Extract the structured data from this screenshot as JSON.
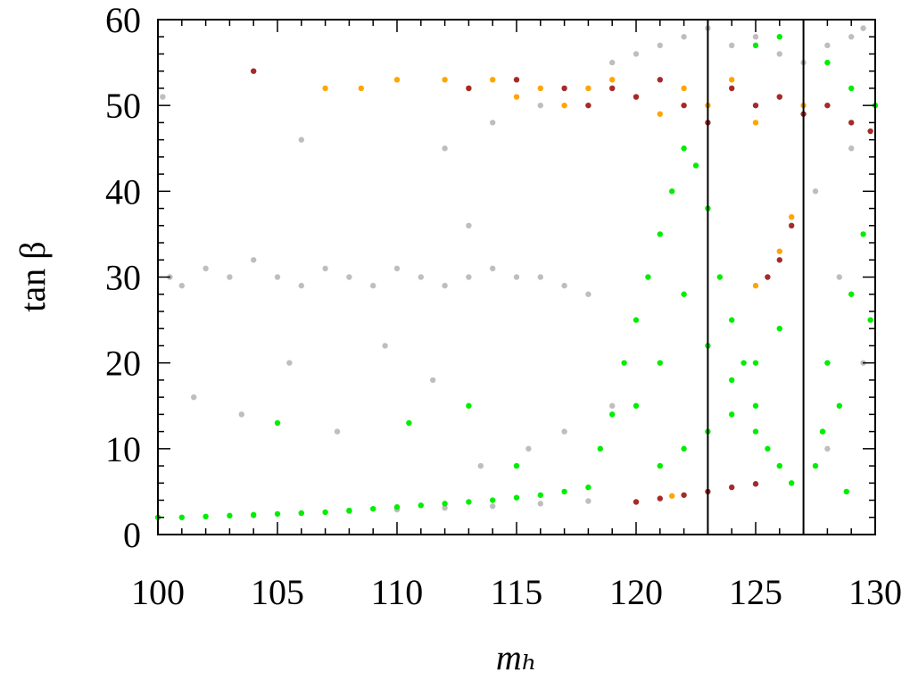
{
  "chart_data": {
    "type": "scatter",
    "xlabel": "mₕ",
    "ylabel": "tan β",
    "xlim": [
      100,
      130
    ],
    "ylim": [
      0,
      60
    ],
    "xticks": [
      100,
      105,
      110,
      115,
      120,
      125,
      130
    ],
    "yticks": [
      0,
      10,
      20,
      30,
      40,
      50,
      60
    ],
    "xminorticks": [
      101,
      102,
      103,
      104,
      106,
      107,
      108,
      109,
      111,
      112,
      113,
      114,
      116,
      117,
      118,
      119,
      121,
      122,
      123,
      124,
      126,
      127,
      128,
      129
    ],
    "yminorticks": [
      2,
      4,
      6,
      8,
      12,
      14,
      16,
      18,
      22,
      24,
      26,
      28,
      32,
      34,
      36,
      38,
      42,
      44,
      46,
      48,
      52,
      54,
      56,
      58
    ],
    "vlines": [
      123,
      127
    ],
    "series": [
      {
        "color": "#bebebe",
        "x": [
          100.5,
          101,
          102,
          103,
          104,
          105,
          106,
          107,
          108,
          109,
          110,
          111,
          112,
          113,
          114,
          115,
          116,
          117,
          118,
          101.5,
          103.5,
          105.5,
          107.5,
          109.5,
          111.5,
          113.5,
          115.5,
          117,
          119,
          104,
          106,
          108,
          110,
          112,
          114,
          116,
          118,
          112,
          114,
          116,
          118,
          119,
          120,
          121,
          122,
          123,
          124,
          125,
          126,
          127,
          128,
          129,
          129.5,
          127.5,
          128.5,
          129.5,
          128,
          129,
          100.2,
          106,
          113
        ],
        "values": [
          30,
          29,
          31,
          30,
          32,
          30,
          29,
          31,
          30,
          29,
          31,
          30,
          29,
          30,
          31,
          30,
          30,
          29,
          28,
          16,
          14,
          20,
          12,
          22,
          18,
          8,
          10,
          12,
          15,
          2.2,
          2.5,
          2.7,
          2.9,
          3.1,
          3.3,
          3.6,
          3.9,
          45,
          48,
          50,
          52,
          55,
          56,
          57,
          58,
          59,
          57,
          58,
          56,
          55,
          57,
          58,
          59,
          40,
          30,
          20,
          10,
          45,
          51,
          46,
          36
        ]
      },
      {
        "color": "#00ee00",
        "x": [
          100,
          101,
          102,
          103,
          104,
          105,
          106,
          107,
          108,
          109,
          110,
          111,
          112,
          113,
          114,
          115,
          116,
          117,
          118,
          118.5,
          119,
          119.5,
          120,
          120.5,
          121,
          121.5,
          122,
          122.5,
          123,
          123.5,
          124,
          124.5,
          125,
          125.5,
          126,
          126.5,
          120,
          121,
          122,
          123,
          124,
          125,
          121,
          122,
          123,
          124,
          125,
          126,
          127.5,
          128,
          128.5,
          129,
          129.5,
          127.8,
          128.8,
          129.8,
          128,
          129,
          130,
          125,
          126,
          105,
          110.5,
          113,
          115
        ],
        "values": [
          2,
          2,
          2.1,
          2.2,
          2.3,
          2.4,
          2.5,
          2.6,
          2.8,
          3,
          3.2,
          3.4,
          3.6,
          3.8,
          4,
          4.3,
          4.6,
          5,
          5.5,
          10,
          14,
          20,
          25,
          30,
          35,
          40,
          45,
          43,
          38,
          30,
          25,
          20,
          15,
          10,
          8,
          6,
          15,
          20,
          28,
          22,
          18,
          12,
          8,
          10,
          12,
          14,
          20,
          24,
          8,
          20,
          15,
          28,
          35,
          12,
          5,
          25,
          55,
          52,
          50,
          57,
          58,
          13,
          13,
          15,
          8
        ]
      },
      {
        "color": "#ffa500",
        "x": [
          107,
          108.5,
          110,
          112,
          113,
          114,
          115,
          116,
          117,
          118,
          119,
          120,
          121,
          122,
          123,
          124,
          125,
          126,
          127,
          125,
          126,
          126.5,
          120,
          121.5
        ],
        "values": [
          52,
          52,
          53,
          53,
          52,
          53,
          51,
          52,
          50,
          52,
          53,
          51,
          49,
          52,
          50,
          53,
          48,
          51,
          50,
          29,
          33,
          37,
          3.8,
          4.5
        ]
      },
      {
        "color": "#a52a2a",
        "x": [
          104,
          113,
          115,
          117,
          118,
          119,
          120,
          121,
          122,
          123,
          124,
          125,
          126,
          127,
          128,
          129,
          129.8,
          126,
          126.5,
          125.5,
          120,
          121,
          122,
          123,
          124,
          125
        ],
        "values": [
          54,
          52,
          53,
          52,
          50,
          52,
          51,
          53,
          50,
          48,
          52,
          50,
          51,
          49,
          50,
          48,
          47,
          32,
          36,
          30,
          3.8,
          4.2,
          4.6,
          5,
          5.5,
          5.9
        ]
      }
    ]
  }
}
